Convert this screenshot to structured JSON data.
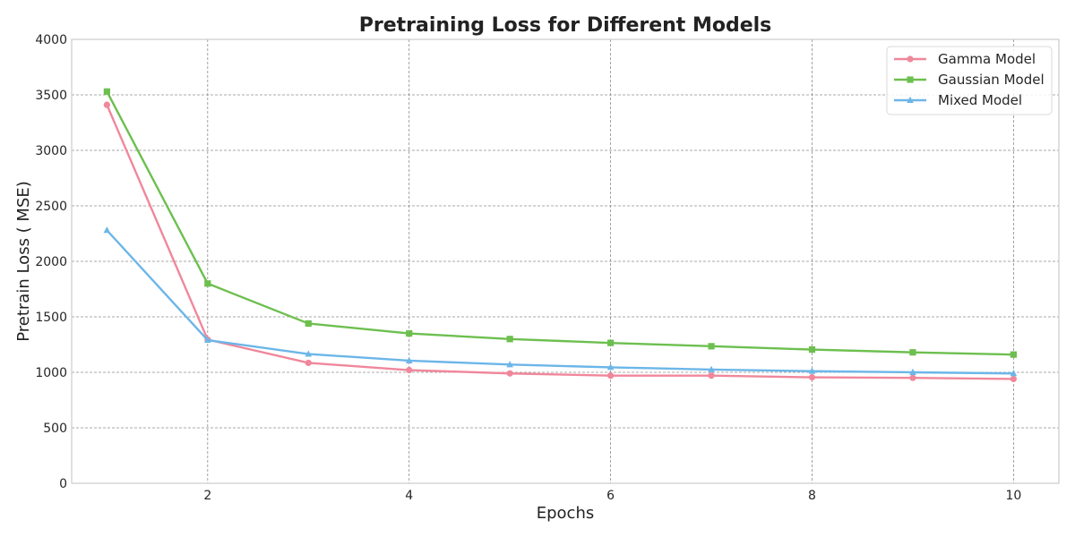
{
  "chart_data": {
    "type": "line",
    "title": "Pretraining Loss for Different Models",
    "xlabel": "Epochs",
    "ylabel": "Pretrain Loss (  MSE)",
    "xlim": [
      0.65,
      10.45
    ],
    "ylim": [
      0,
      4000
    ],
    "xticks": [
      2,
      4,
      6,
      8,
      10
    ],
    "yticks": [
      0,
      500,
      1000,
      1500,
      2000,
      2500,
      3000,
      3500,
      4000
    ],
    "grid": true,
    "legend_position": "top-right",
    "x": [
      1,
      2,
      3,
      4,
      5,
      6,
      7,
      8,
      9,
      10
    ],
    "series": [
      {
        "name": "Gamma Model",
        "color": "#f0879b",
        "marker": "circle",
        "values": [
          3410,
          1295,
          1085,
          1020,
          990,
          970,
          970,
          955,
          950,
          940
        ]
      },
      {
        "name": "Gaussian Model",
        "color": "#6dbf4f",
        "marker": "square",
        "values": [
          3530,
          1800,
          1440,
          1350,
          1300,
          1265,
          1235,
          1205,
          1180,
          1160
        ]
      },
      {
        "name": "Mixed Model",
        "color": "#6cb6e8",
        "marker": "triangle",
        "values": [
          2280,
          1290,
          1165,
          1105,
          1070,
          1045,
          1025,
          1010,
          1000,
          990
        ]
      }
    ]
  }
}
